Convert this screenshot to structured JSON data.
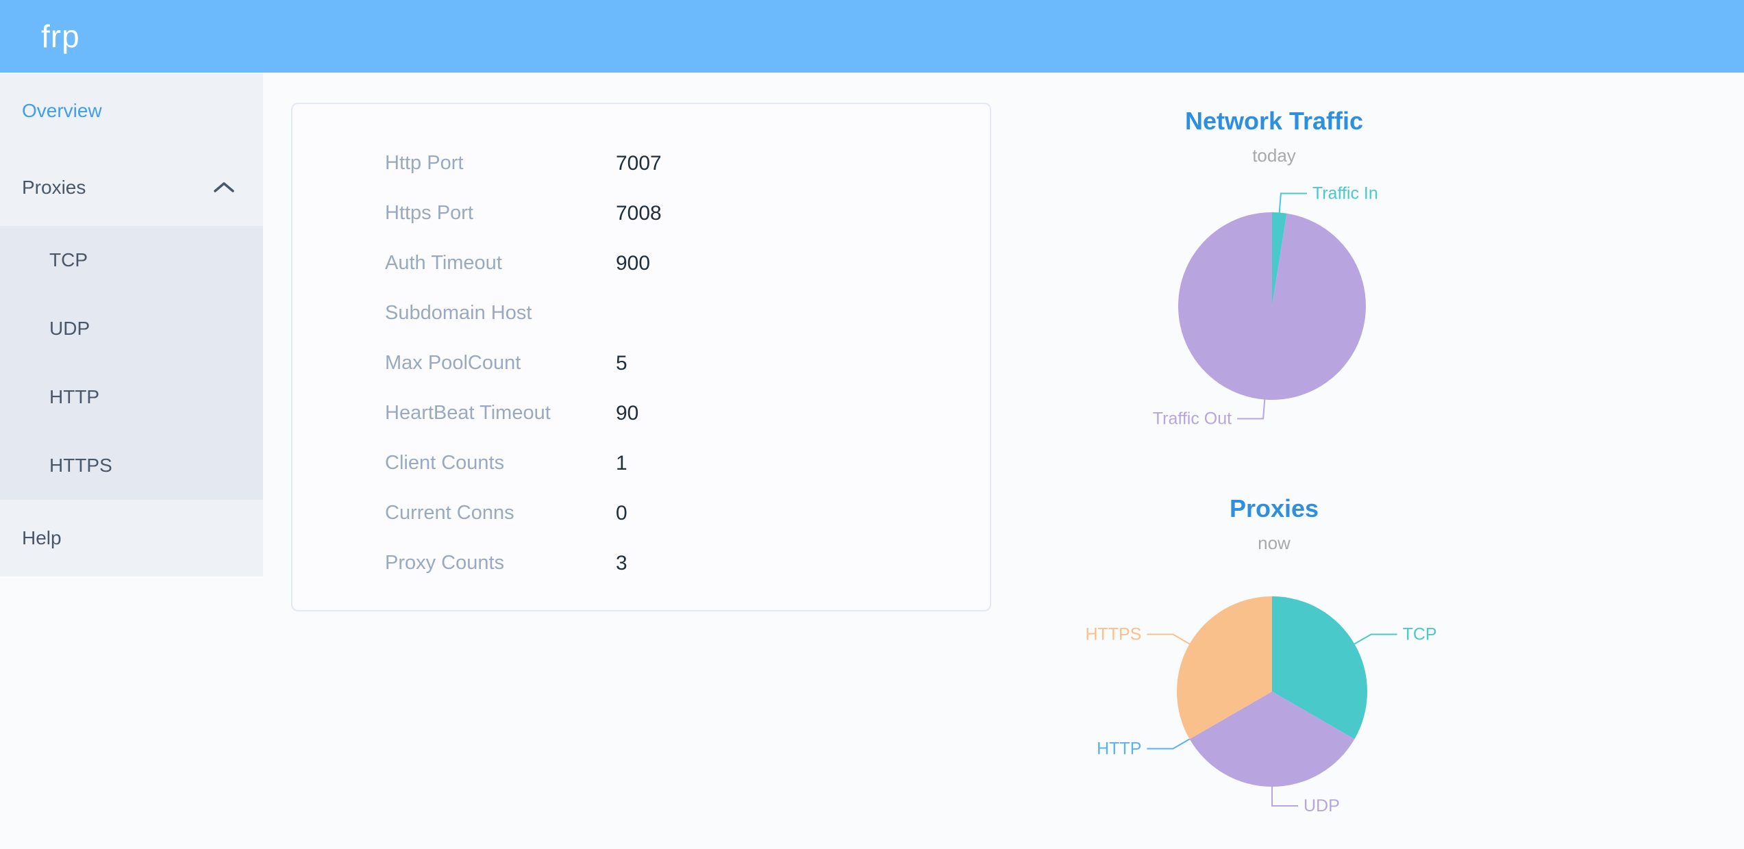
{
  "header": {
    "logo": "frp"
  },
  "sidebar": {
    "overview": "Overview",
    "proxies": "Proxies",
    "proxies_children": [
      "TCP",
      "UDP",
      "HTTP",
      "HTTPS"
    ],
    "help": "Help",
    "active_item": "Overview",
    "proxies_expanded": true
  },
  "server_info": {
    "rows": [
      {
        "label": "Http Port",
        "value": "7007"
      },
      {
        "label": "Https Port",
        "value": "7008"
      },
      {
        "label": "Auth Timeout",
        "value": "900"
      },
      {
        "label": "Subdomain Host",
        "value": ""
      },
      {
        "label": "Max PoolCount",
        "value": "5"
      },
      {
        "label": "HeartBeat Timeout",
        "value": "90"
      },
      {
        "label": "Client Counts",
        "value": "1"
      },
      {
        "label": "Current Conns",
        "value": "0"
      },
      {
        "label": "Proxy Counts",
        "value": "3"
      }
    ]
  },
  "chart_data": [
    {
      "type": "pie",
      "title": "Network Traffic",
      "subtitle": "today",
      "legend_position": "outside-labels",
      "series": [
        {
          "name": "Traffic In",
          "value": 2.5,
          "estimated_percent": true,
          "color": "#4ac9cb"
        },
        {
          "name": "Traffic Out",
          "value": 97.5,
          "estimated_percent": true,
          "color": "#b8a5e0"
        }
      ]
    },
    {
      "type": "pie",
      "title": "Proxies",
      "subtitle": "now",
      "legend_position": "outside-labels",
      "series": [
        {
          "name": "TCP",
          "value": 1,
          "color": "#4ac9cb"
        },
        {
          "name": "UDP",
          "value": 1,
          "color": "#b8a5e0"
        },
        {
          "name": "HTTP",
          "value": 0,
          "color": "#5ab1ef"
        },
        {
          "name": "HTTPS",
          "value": 1,
          "color": "#fac08b"
        }
      ]
    }
  ],
  "theme": {
    "header_bg": "#6cb9fc",
    "page_bg": "#fafbfc",
    "sidebar_bg": "#eef1f6",
    "submenu_bg": "#e4e8f1",
    "sidebar_text": "#48576a",
    "sidebar_active": "#3f9ef0",
    "card_bg": "#fcfcfe",
    "card_border": "#e3e8f5",
    "label_color": "#99a9bf",
    "value_color": "#1f2d3d",
    "title_color": "#2d8fdd",
    "subtitle_color": "#a9a9a9"
  }
}
